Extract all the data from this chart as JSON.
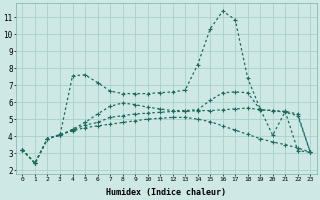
{
  "xlabel": "Humidex (Indice chaleur)",
  "x": [
    0,
    1,
    2,
    3,
    4,
    5,
    6,
    7,
    8,
    9,
    10,
    11,
    12,
    13,
    14,
    15,
    16,
    17,
    18,
    19,
    20,
    21,
    22,
    23
  ],
  "line1": [
    3.2,
    2.4,
    3.85,
    4.1,
    4.3,
    4.5,
    4.6,
    4.7,
    4.8,
    4.9,
    5.0,
    5.05,
    5.1,
    5.1,
    5.0,
    4.85,
    4.6,
    4.35,
    4.1,
    3.85,
    3.65,
    3.5,
    3.3,
    3.05
  ],
  "line2": [
    3.2,
    2.4,
    3.85,
    4.05,
    7.55,
    7.6,
    7.15,
    6.65,
    6.5,
    6.5,
    6.5,
    6.55,
    6.6,
    6.7,
    8.2,
    10.3,
    11.35,
    10.85,
    7.4,
    5.6,
    4.05,
    5.45,
    3.15,
    3.05
  ],
  "line3": [
    3.2,
    2.4,
    3.85,
    4.05,
    4.35,
    4.65,
    4.8,
    5.1,
    5.2,
    5.3,
    5.35,
    5.4,
    5.45,
    5.45,
    5.5,
    5.5,
    5.55,
    5.6,
    5.65,
    5.55,
    5.5,
    5.45,
    5.3,
    3.05
  ],
  "line4": [
    3.2,
    2.4,
    3.85,
    4.05,
    4.4,
    4.8,
    5.3,
    5.75,
    5.95,
    5.85,
    5.7,
    5.6,
    5.5,
    5.5,
    5.55,
    6.1,
    6.55,
    6.6,
    6.55,
    5.55,
    5.5,
    5.4,
    5.2,
    3.05
  ],
  "color": "#1a6b5e",
  "bg_color": "#cde8e5",
  "grid_color": "#aad0cc",
  "ylim": [
    1.8,
    11.8
  ],
  "yticks": [
    2,
    3,
    4,
    5,
    6,
    7,
    8,
    9,
    10,
    11
  ],
  "xlim": [
    -0.5,
    23.5
  ]
}
